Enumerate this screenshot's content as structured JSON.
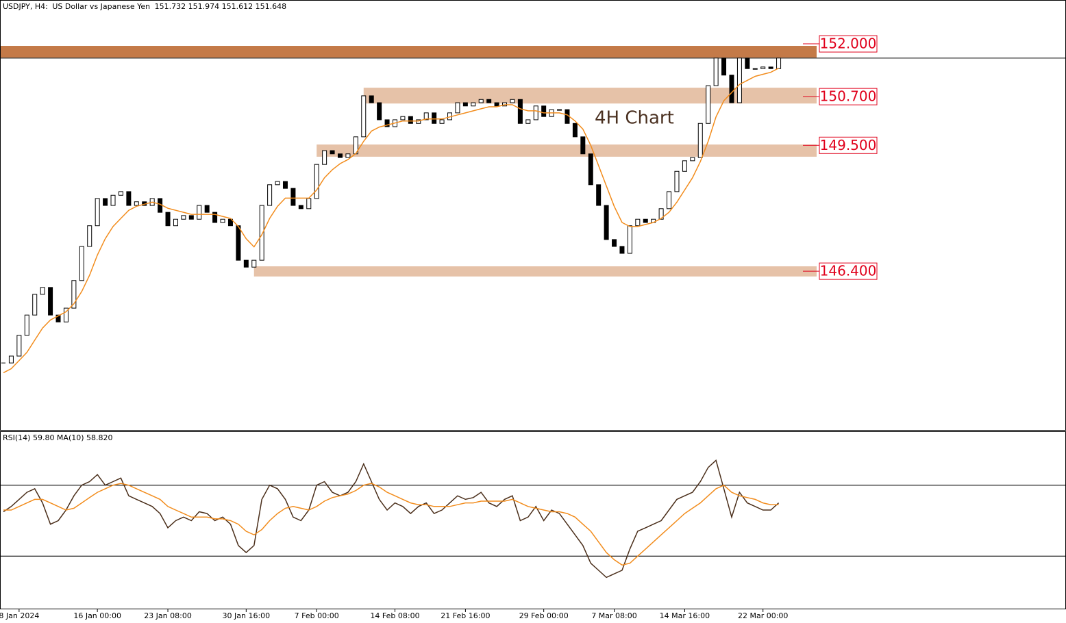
{
  "chart_data": {
    "type": "candlestick",
    "header": {
      "symbol": "USDJPY, H4:",
      "description": "US Dollar vs Japanese Yen",
      "ohlc": [
        151.732,
        151.974,
        151.612,
        151.648
      ]
    },
    "annotation": "4H Chart",
    "categories": [
      null,
      null,
      "8 Jan 2024",
      null,
      null,
      null,
      null,
      null,
      null,
      null,
      null,
      null,
      "16 Jan 00:00",
      null,
      null,
      null,
      null,
      null,
      null,
      null,
      null,
      "23 Jan 08:00",
      null,
      null,
      null,
      null,
      null,
      null,
      null,
      null,
      null,
      "30 Jan 16:00",
      null,
      null,
      null,
      null,
      null,
      null,
      null,
      null,
      "7 Feb 00:00",
      null,
      null,
      null,
      null,
      null,
      null,
      null,
      null,
      null,
      "14 Feb 08:00",
      null,
      null,
      null,
      null,
      null,
      null,
      null,
      null,
      "21 Feb 16:00",
      null,
      null,
      null,
      null,
      null,
      null,
      null,
      null,
      null,
      "29 Feb 00:00",
      null,
      null,
      null,
      null,
      null,
      null,
      null,
      null,
      "7 Mar 08:00",
      null,
      null,
      null,
      null,
      null,
      null,
      null,
      null,
      "14 Mar 16:00",
      null,
      null,
      null,
      null,
      null,
      null,
      null,
      null,
      null,
      "22 Mar 00:00",
      null,
      null
    ],
    "close": [
      144.14,
      144.31,
      144.82,
      145.32,
      145.83,
      146.0,
      145.32,
      145.15,
      145.49,
      146.17,
      147.01,
      147.52,
      148.19,
      148.02,
      148.27,
      148.36,
      148.02,
      148.11,
      148.02,
      148.19,
      147.85,
      147.52,
      147.68,
      147.77,
      147.68,
      148.02,
      147.85,
      147.6,
      147.68,
      147.52,
      146.67,
      146.5,
      146.67,
      148.02,
      148.53,
      148.61,
      148.44,
      148.02,
      147.94,
      148.19,
      149.03,
      149.37,
      149.29,
      149.2,
      149.29,
      149.71,
      150.72,
      150.55,
      150.13,
      149.96,
      150.13,
      150.21,
      150.04,
      150.13,
      150.3,
      150.04,
      150.13,
      150.3,
      150.55,
      150.47,
      150.55,
      150.63,
      150.55,
      150.47,
      150.55,
      150.63,
      150.04,
      150.13,
      150.47,
      150.21,
      150.38,
      150.38,
      150.04,
      149.71,
      149.29,
      148.53,
      148.02,
      147.18,
      147.01,
      146.84,
      147.52,
      147.68,
      147.6,
      147.68,
      147.94,
      148.36,
      148.86,
      149.12,
      149.2,
      150.04,
      150.97,
      151.65,
      151.23,
      150.55,
      151.65,
      151.39,
      151.39,
      151.43,
      151.39,
      151.65
    ],
    "ma": [
      143.9,
      144.0,
      144.2,
      144.4,
      144.7,
      145.0,
      145.2,
      145.3,
      145.4,
      145.6,
      145.9,
      146.3,
      146.8,
      147.2,
      147.5,
      147.7,
      147.9,
      148.0,
      148.05,
      148.1,
      148.05,
      147.95,
      147.9,
      147.85,
      147.8,
      147.8,
      147.8,
      147.8,
      147.75,
      147.7,
      147.5,
      147.2,
      147.0,
      147.3,
      147.7,
      148.0,
      148.2,
      148.2,
      148.2,
      148.2,
      148.4,
      148.7,
      148.9,
      149.05,
      149.15,
      149.3,
      149.6,
      149.85,
      149.95,
      150.0,
      150.05,
      150.1,
      150.1,
      150.1,
      150.15,
      150.15,
      150.15,
      150.2,
      150.25,
      150.3,
      150.35,
      150.4,
      150.45,
      150.45,
      150.5,
      150.5,
      150.4,
      150.35,
      150.35,
      150.3,
      150.3,
      150.3,
      150.25,
      150.1,
      149.9,
      149.5,
      149.0,
      148.5,
      148.0,
      147.6,
      147.5,
      147.5,
      147.55,
      147.6,
      147.7,
      147.85,
      148.1,
      148.4,
      148.7,
      149.1,
      149.6,
      150.2,
      150.6,
      150.8,
      151.0,
      151.1,
      151.2,
      151.25,
      151.3,
      151.4
    ],
    "ma_color": "#f28c1c",
    "ylim": [
      142.49,
      153.08
    ],
    "levels": [
      {
        "value": 152,
        "label": "152.000",
        "band": [
          151.66,
          151.95
        ],
        "start": 0,
        "color": "#c47a48"
      },
      {
        "value": 150.7,
        "label": "150.700",
        "band": [
          150.53,
          150.92
        ],
        "start": 46,
        "color": "#e6c2a8"
      },
      {
        "value": 149.5,
        "label": "149.500",
        "band": [
          149.22,
          149.52
        ],
        "start": 40,
        "color": "#e6c2a8"
      },
      {
        "value": 146.4,
        "label": "146.400",
        "band": [
          146.27,
          146.52
        ],
        "start": 32,
        "color": "#e6c2a8"
      }
    ],
    "rsi": {
      "label": "RSI(14) 59.80 MA(10) 58.820",
      "values": [
        55,
        58,
        62,
        66,
        68,
        60,
        48,
        50,
        56,
        64,
        70,
        72,
        76,
        70,
        72,
        74,
        64,
        62,
        60,
        58,
        54,
        46,
        50,
        52,
        50,
        55,
        54,
        50,
        52,
        48,
        36,
        32,
        36,
        62,
        70,
        68,
        62,
        52,
        50,
        56,
        70,
        72,
        66,
        64,
        66,
        72,
        82,
        72,
        62,
        56,
        60,
        58,
        54,
        58,
        60,
        54,
        56,
        60,
        64,
        62,
        63,
        66,
        60,
        58,
        62,
        64,
        50,
        52,
        58,
        50,
        56,
        54,
        48,
        42,
        36,
        26,
        22,
        18,
        20,
        22,
        34,
        44,
        46,
        48,
        50,
        56,
        62,
        64,
        66,
        72,
        80,
        84,
        68,
        52,
        66,
        60,
        58,
        56,
        56,
        60
      ],
      "ma": [
        56,
        56,
        58,
        60,
        62,
        62,
        60,
        58,
        56,
        57,
        60,
        63,
        66,
        68,
        70,
        71,
        70,
        68,
        66,
        64,
        62,
        58,
        56,
        54,
        52,
        52,
        52,
        51,
        51,
        50,
        48,
        44,
        42,
        45,
        50,
        54,
        57,
        58,
        57,
        56,
        58,
        61,
        63,
        64,
        65,
        67,
        70,
        71,
        69,
        66,
        64,
        62,
        60,
        59,
        59,
        58,
        58,
        58,
        59,
        60,
        60,
        61,
        61,
        61,
        61,
        62,
        60,
        58,
        57,
        56,
        55,
        55,
        54,
        52,
        48,
        44,
        38,
        32,
        28,
        25,
        26,
        30,
        34,
        38,
        42,
        46,
        50,
        54,
        57,
        60,
        64,
        68,
        70,
        66,
        64,
        63,
        62,
        60,
        59,
        59
      ],
      "color": "#4a2e1a",
      "ylim": [
        0,
        100
      ],
      "levels": [
        30,
        70
      ]
    }
  }
}
